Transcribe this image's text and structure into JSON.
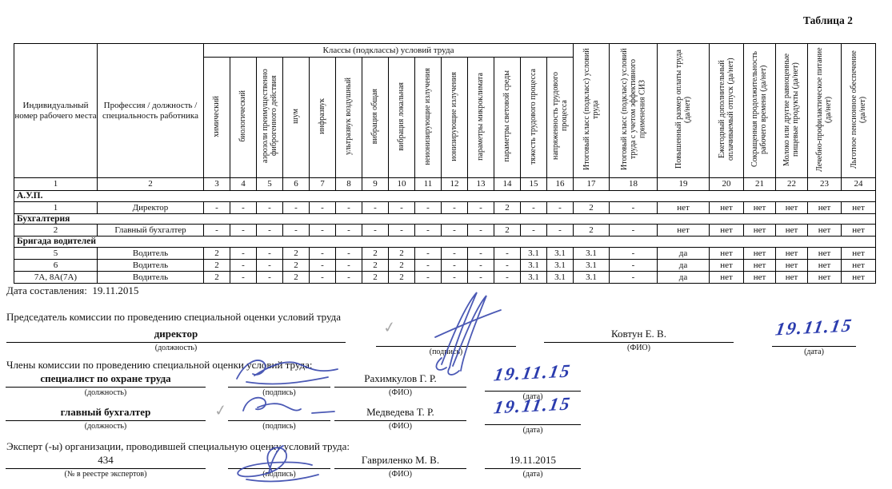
{
  "page_title": "Таблица 2",
  "table": {
    "col1_header": "Индивидуальный номер рабочего места",
    "col2_header": "Профессия / должность / специальность работника",
    "classes_group_header": "Классы (подклассы) условий труда",
    "factor_columns": [
      "химический",
      "биологический",
      "аэрозоли преимущественно фиброгенного действия",
      "шум",
      "инфразвук",
      "ультразвук воздушный",
      "вибрация общая",
      "вибрация локальная",
      "неионизирующие излучения",
      "ионизирующие излучения",
      "параметры микроклимата",
      "параметры световой среды",
      "тяжесть трудового процесса",
      "напряженность трудового процесса"
    ],
    "result_columns": [
      "Итоговый класс (подкласс) условий труда",
      "Итоговый класс (подкласс) условий труда с учетом эффективного применения СИЗ",
      "Повышенный размер оплаты труда (да/нет)",
      "Ежегодный дополнительный оплачиваемый отпуск (да/нет)",
      "Сокращенная продолжительность рабочего времени (да/нет)",
      "Молоко или другие равноценные пищевые продукты (да/нет)",
      "Лечебно-профилактическое питание  (да/нет)",
      "Льготное пенсионное обеспечение (да/нет)"
    ],
    "number_row": [
      "1",
      "2",
      "3",
      "4",
      "5",
      "6",
      "7",
      "8",
      "9",
      "10",
      "11",
      "12",
      "13",
      "14",
      "15",
      "16",
      "17",
      "18",
      "19",
      "20",
      "21",
      "22",
      "23",
      "24"
    ],
    "rows": [
      {
        "type": "group",
        "label": "А.У.П."
      },
      {
        "type": "data",
        "num": "1",
        "profession": "Директор",
        "values": [
          "-",
          "-",
          "-",
          "-",
          "-",
          "-",
          "-",
          "-",
          "-",
          "-",
          "-",
          "2",
          "-",
          "-",
          "2",
          "-",
          "нет",
          "нет",
          "нет",
          "нет",
          "нет",
          "нет"
        ]
      },
      {
        "type": "group",
        "label": "Бухгалтерия"
      },
      {
        "type": "data",
        "num": "2",
        "profession": "Главный бухгалтер",
        "values": [
          "-",
          "-",
          "-",
          "-",
          "-",
          "-",
          "-",
          "-",
          "-",
          "-",
          "-",
          "2",
          "-",
          "-",
          "2",
          "-",
          "нет",
          "нет",
          "нет",
          "нет",
          "нет",
          "нет"
        ]
      },
      {
        "type": "group",
        "label": "Бригада водителей"
      },
      {
        "type": "data",
        "num": "5",
        "profession": "Водитель",
        "values": [
          "2",
          "-",
          "-",
          "2",
          "-",
          "-",
          "2",
          "2",
          "-",
          "-",
          "-",
          "-",
          "3.1",
          "3.1",
          "3.1",
          "-",
          "да",
          "нет",
          "нет",
          "нет",
          "нет",
          "нет"
        ]
      },
      {
        "type": "data",
        "num": "6",
        "profession": "Водитель",
        "values": [
          "2",
          "-",
          "-",
          "2",
          "-",
          "-",
          "2",
          "2",
          "-",
          "-",
          "-",
          "-",
          "3.1",
          "3.1",
          "3.1",
          "-",
          "да",
          "нет",
          "нет",
          "нет",
          "нет",
          "нет"
        ]
      },
      {
        "type": "data",
        "num": "7А, 8А(7А)",
        "profession": "Водитель",
        "values": [
          "2",
          "-",
          "-",
          "2",
          "-",
          "-",
          "2",
          "2",
          "-",
          "-",
          "-",
          "-",
          "3.1",
          "3.1",
          "3.1",
          "-",
          "да",
          "нет",
          "нет",
          "нет",
          "нет",
          "нет"
        ]
      }
    ]
  },
  "date_line": {
    "label": "Дата составления:",
    "value": "19.11.2015"
  },
  "sign": {
    "chairman_label": "Председатель комиссии по проведению специальной оценки условий труда",
    "chairman": {
      "position": "директор",
      "name": "Ковтун Е. В.",
      "date": "19.11.15"
    },
    "members_label": "Члены комиссии по проведению специальной оценки условий труда:",
    "members": [
      {
        "position": "специалист по охране труда",
        "name": "Рахимкулов Г. Р.",
        "date": "19.11.15"
      },
      {
        "position": "главный бухгалтер",
        "name": "Медведева Т. Р.",
        "date": "19.11.15"
      }
    ],
    "experts_label": "Эксперт (-ы) организации, проводившей специальную оценку условий труда:",
    "expert": {
      "number": "434",
      "name": "Гавриленко М. В.",
      "date": "19.11.2015"
    },
    "captions": {
      "position": "(должность)",
      "sign": "(подпись)",
      "name": "(ФИО)",
      "date": "(дата)",
      "expert_number": "(№ в реестре экспертов)"
    }
  },
  "icons": {
    "check": "✓"
  }
}
